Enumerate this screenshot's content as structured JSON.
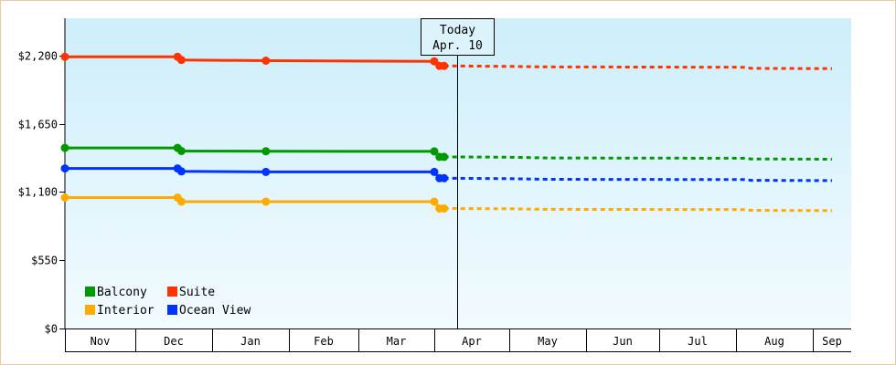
{
  "chart_data": {
    "type": "line",
    "y_ticks": [
      {
        "value": 0,
        "label": "$0"
      },
      {
        "value": 550,
        "label": "$550"
      },
      {
        "value": 1100,
        "label": "$1,100"
      },
      {
        "value": 1650,
        "label": "$1,650"
      },
      {
        "value": 2200,
        "label": "$2,200"
      }
    ],
    "ylim": [
      0,
      2200
    ],
    "x_months": [
      "Nov",
      "Dec",
      "Jan",
      "Feb",
      "Mar",
      "Apr",
      "May",
      "Jun",
      "Jul",
      "Aug",
      "Sep"
    ],
    "today": {
      "line1": "Today",
      "line2": "Apr. 10"
    },
    "legend_placement": "bottom-left",
    "series": [
      {
        "name": "Suite",
        "color": "#ff3300",
        "actual": [
          [
            0,
            2190
          ],
          [
            1.55,
            2190
          ],
          [
            1.6,
            2164
          ],
          [
            2.7,
            2158
          ],
          [
            5.0,
            2153
          ],
          [
            5.07,
            2116
          ],
          [
            5.13,
            2116
          ]
        ],
        "markers": [
          [
            0,
            2190
          ],
          [
            1.55,
            2190
          ],
          [
            1.6,
            2164
          ],
          [
            2.7,
            2158
          ],
          [
            5.0,
            2153
          ],
          [
            5.07,
            2116
          ],
          [
            5.13,
            2116
          ]
        ],
        "projected": [
          [
            5.13,
            2116
          ],
          [
            6.0,
            2112
          ],
          [
            6.5,
            2108
          ],
          [
            9.1,
            2105
          ],
          [
            9.2,
            2096
          ],
          [
            10.5,
            2094
          ]
        ]
      },
      {
        "name": "Balcony",
        "color": "#009900",
        "actual": [
          [
            0,
            1455
          ],
          [
            1.55,
            1455
          ],
          [
            1.6,
            1430
          ],
          [
            2.7,
            1428
          ],
          [
            5.0,
            1427
          ],
          [
            5.07,
            1383
          ],
          [
            5.13,
            1383
          ]
        ],
        "markers": [
          [
            0,
            1455
          ],
          [
            1.55,
            1455
          ],
          [
            1.6,
            1430
          ],
          [
            2.7,
            1428
          ],
          [
            5.0,
            1427
          ],
          [
            5.07,
            1383
          ],
          [
            5.13,
            1383
          ]
        ],
        "projected": [
          [
            5.13,
            1383
          ],
          [
            6.0,
            1380
          ],
          [
            6.5,
            1374
          ],
          [
            9.1,
            1372
          ],
          [
            9.2,
            1366
          ],
          [
            10.5,
            1364
          ]
        ]
      },
      {
        "name": "Ocean View",
        "color": "#0033ff",
        "actual": [
          [
            0,
            1290
          ],
          [
            1.55,
            1290
          ],
          [
            1.6,
            1266
          ],
          [
            2.7,
            1262
          ],
          [
            5.0,
            1262
          ],
          [
            5.07,
            1211
          ],
          [
            5.13,
            1211
          ]
        ],
        "markers": [
          [
            0,
            1290
          ],
          [
            1.55,
            1290
          ],
          [
            1.6,
            1266
          ],
          [
            2.7,
            1262
          ],
          [
            5.0,
            1262
          ],
          [
            5.07,
            1211
          ],
          [
            5.13,
            1211
          ]
        ],
        "projected": [
          [
            5.13,
            1211
          ],
          [
            6.0,
            1207
          ],
          [
            6.5,
            1202
          ],
          [
            9.1,
            1200
          ],
          [
            9.2,
            1194
          ],
          [
            10.5,
            1192
          ]
        ]
      },
      {
        "name": "Interior",
        "color": "#ffaa00",
        "actual": [
          [
            0,
            1055
          ],
          [
            1.55,
            1055
          ],
          [
            1.6,
            1022
          ],
          [
            2.7,
            1022
          ],
          [
            5.0,
            1022
          ],
          [
            5.07,
            967
          ],
          [
            5.13,
            967
          ]
        ],
        "markers": [
          [
            0,
            1055
          ],
          [
            1.55,
            1055
          ],
          [
            1.6,
            1022
          ],
          [
            2.7,
            1022
          ],
          [
            5.0,
            1022
          ],
          [
            5.07,
            967
          ],
          [
            5.13,
            967
          ]
        ],
        "projected": [
          [
            5.13,
            967
          ],
          [
            6.0,
            965
          ],
          [
            6.5,
            960
          ],
          [
            9.1,
            958
          ],
          [
            9.2,
            952
          ],
          [
            10.5,
            950
          ]
        ]
      }
    ],
    "legend": [
      {
        "name": "Balcony",
        "color": "#009900"
      },
      {
        "name": "Suite",
        "color": "#ff3300"
      },
      {
        "name": "Interior",
        "color": "#ffaa00"
      },
      {
        "name": "Ocean View",
        "color": "#0033ff"
      }
    ]
  }
}
